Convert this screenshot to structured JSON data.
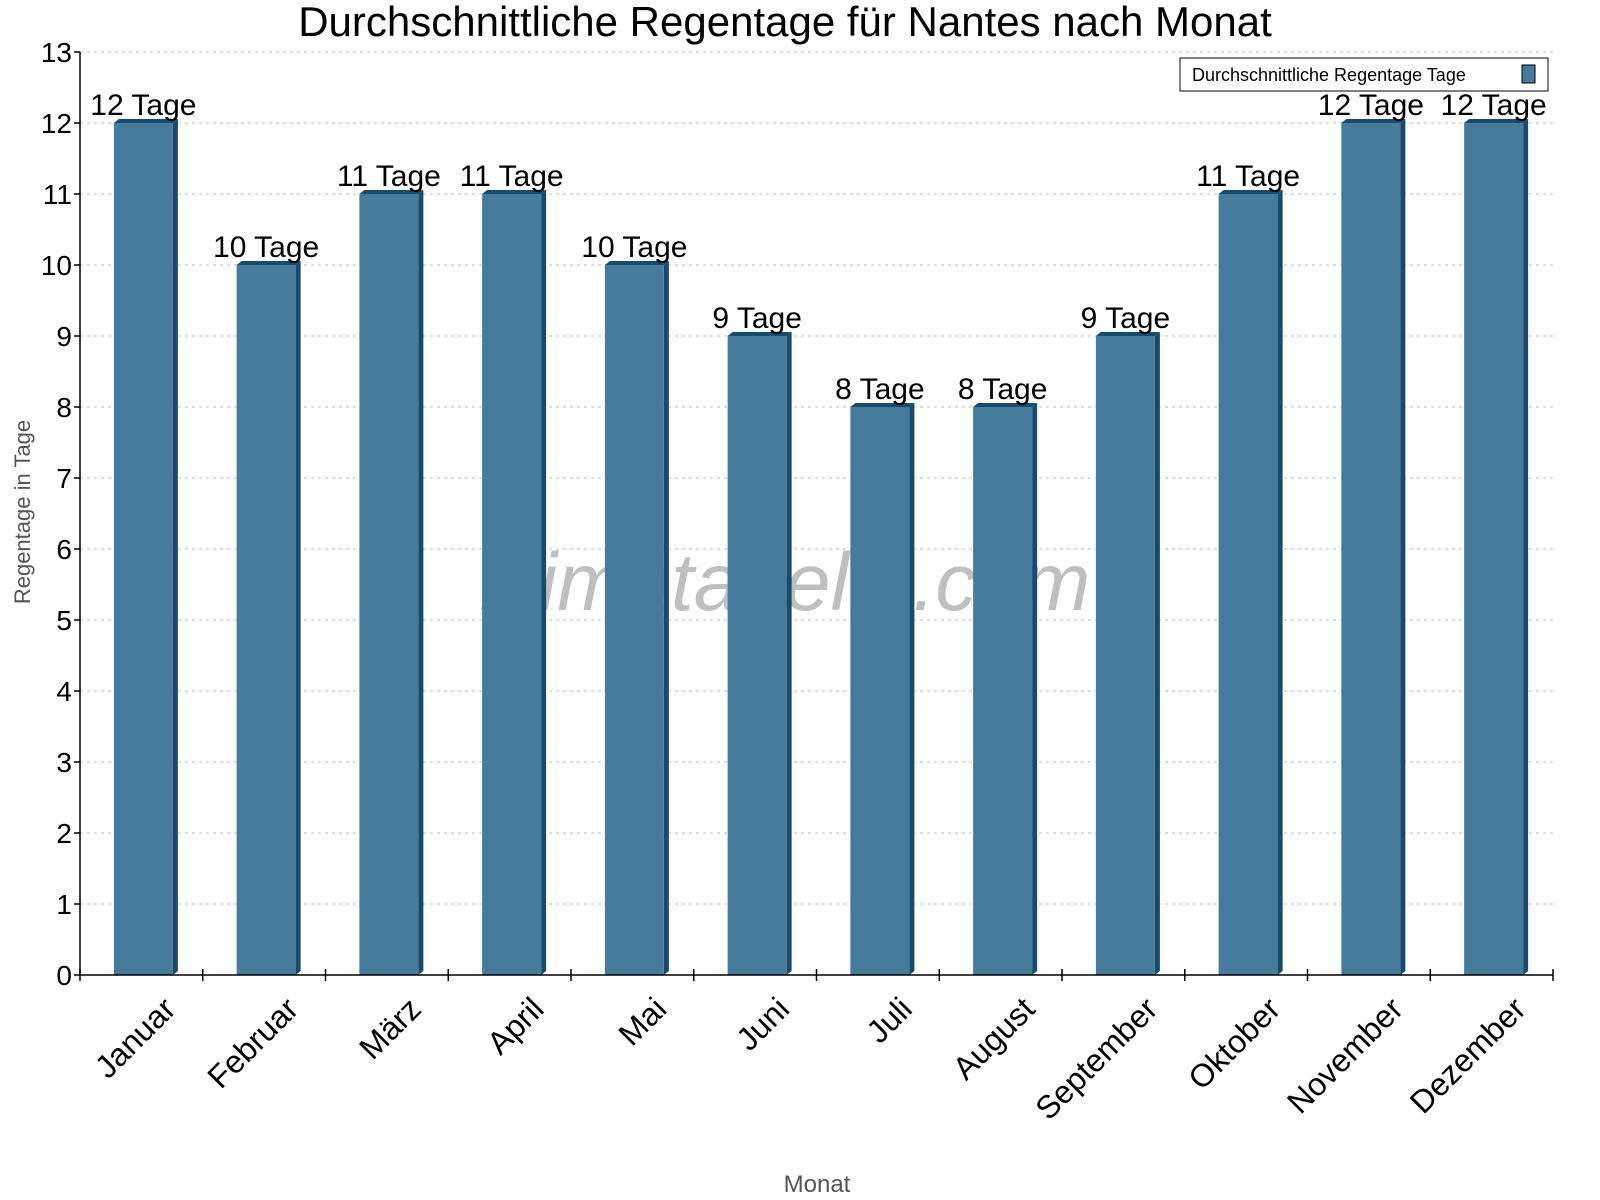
{
  "chart_data": {
    "type": "bar",
    "title": "Durchschnittliche Regentage für Nantes nach Monat",
    "xlabel": "Monat",
    "ylabel": "Regentage in Tage",
    "ylim": [
      0,
      13
    ],
    "yticks": [
      0,
      1,
      2,
      3,
      4,
      5,
      6,
      7,
      8,
      9,
      10,
      11,
      12,
      13
    ],
    "grid": true,
    "legend_position": "top-right",
    "categories": [
      "Januar",
      "Februar",
      "März",
      "April",
      "Mai",
      "Juni",
      "Juli",
      "August",
      "September",
      "Oktober",
      "November",
      "Dezember"
    ],
    "series": [
      {
        "name": "Durchschnittliche Regentage Tage",
        "values": [
          12,
          10,
          11,
          11,
          10,
          9,
          8,
          8,
          9,
          11,
          12,
          12
        ],
        "labels": [
          "12 Tage",
          "10 Tage",
          "11 Tage",
          "11 Tage",
          "10 Tage",
          "9 Tage",
          "8 Tage",
          "8 Tage",
          "9 Tage",
          "11 Tage",
          "12 Tage",
          "12 Tage"
        ]
      }
    ],
    "colors": {
      "bar_front": "#467b9c",
      "bar_side": "#1a4a6b"
    },
    "watermark": "klimatabelle.com"
  }
}
